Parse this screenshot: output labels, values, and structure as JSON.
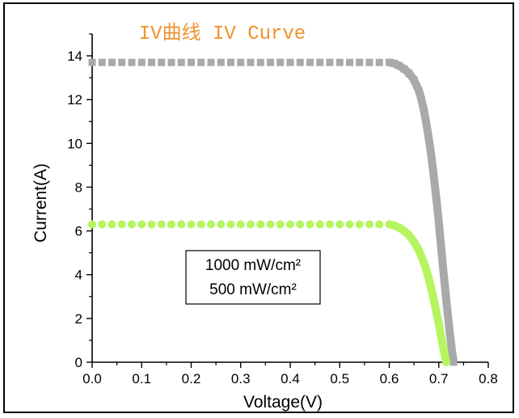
{
  "chart_data": {
    "type": "scatter",
    "title": "IV曲线 IV Curve",
    "xlabel": "Voltage(V)",
    "ylabel": "Current(A)",
    "xlim": [
      0.0,
      0.8
    ],
    "ylim": [
      0,
      15
    ],
    "xticks": [
      "0.0",
      "0.1",
      "0.2",
      "0.3",
      "0.4",
      "0.5",
      "0.6",
      "0.7",
      "0.8"
    ],
    "yticks": [
      "0",
      "2",
      "4",
      "6",
      "8",
      "10",
      "12",
      "14"
    ],
    "grid": false,
    "legend_placement": "center-left",
    "series": [
      {
        "name": "1000 mW/cm²",
        "color": "#a9a9a9",
        "marker": "square",
        "x": [
          0.0,
          0.02,
          0.04,
          0.06,
          0.08,
          0.1,
          0.12,
          0.14,
          0.16,
          0.18,
          0.2,
          0.22,
          0.24,
          0.26,
          0.28,
          0.3,
          0.32,
          0.34,
          0.36,
          0.38,
          0.4,
          0.42,
          0.44,
          0.46,
          0.48,
          0.5,
          0.52,
          0.54,
          0.56,
          0.58,
          0.6,
          0.61,
          0.62,
          0.63,
          0.64,
          0.65,
          0.66,
          0.665,
          0.67,
          0.675,
          0.68,
          0.685,
          0.69,
          0.695,
          0.7,
          0.705,
          0.71,
          0.715,
          0.72,
          0.725,
          0.73
        ],
        "y": [
          13.7,
          13.7,
          13.7,
          13.7,
          13.7,
          13.7,
          13.7,
          13.7,
          13.7,
          13.7,
          13.7,
          13.7,
          13.7,
          13.7,
          13.7,
          13.7,
          13.7,
          13.7,
          13.7,
          13.7,
          13.7,
          13.7,
          13.7,
          13.7,
          13.7,
          13.7,
          13.7,
          13.7,
          13.7,
          13.7,
          13.7,
          13.65,
          13.55,
          13.4,
          13.2,
          12.9,
          12.4,
          12.0,
          11.5,
          10.9,
          10.2,
          9.4,
          8.5,
          7.5,
          6.4,
          5.2,
          4.0,
          2.9,
          1.8,
          0.8,
          0.0
        ]
      },
      {
        "name": "500 mW/cm²",
        "color": "#b5f55f",
        "marker": "circle",
        "x": [
          0.0,
          0.02,
          0.04,
          0.06,
          0.08,
          0.1,
          0.12,
          0.14,
          0.16,
          0.18,
          0.2,
          0.22,
          0.24,
          0.26,
          0.28,
          0.3,
          0.32,
          0.34,
          0.36,
          0.38,
          0.4,
          0.42,
          0.44,
          0.46,
          0.48,
          0.5,
          0.52,
          0.54,
          0.56,
          0.58,
          0.6,
          0.61,
          0.62,
          0.63,
          0.64,
          0.65,
          0.66,
          0.67,
          0.675,
          0.68,
          0.685,
          0.69,
          0.695,
          0.7,
          0.705,
          0.71,
          0.715
        ],
        "y": [
          6.3,
          6.3,
          6.3,
          6.3,
          6.3,
          6.3,
          6.3,
          6.3,
          6.3,
          6.3,
          6.3,
          6.3,
          6.3,
          6.3,
          6.3,
          6.3,
          6.3,
          6.3,
          6.3,
          6.3,
          6.3,
          6.3,
          6.3,
          6.3,
          6.3,
          6.3,
          6.3,
          6.3,
          6.3,
          6.3,
          6.3,
          6.25,
          6.15,
          6.0,
          5.8,
          5.5,
          5.1,
          4.55,
          4.2,
          3.8,
          3.35,
          2.85,
          2.3,
          1.75,
          1.15,
          0.55,
          0.0
        ]
      }
    ]
  }
}
